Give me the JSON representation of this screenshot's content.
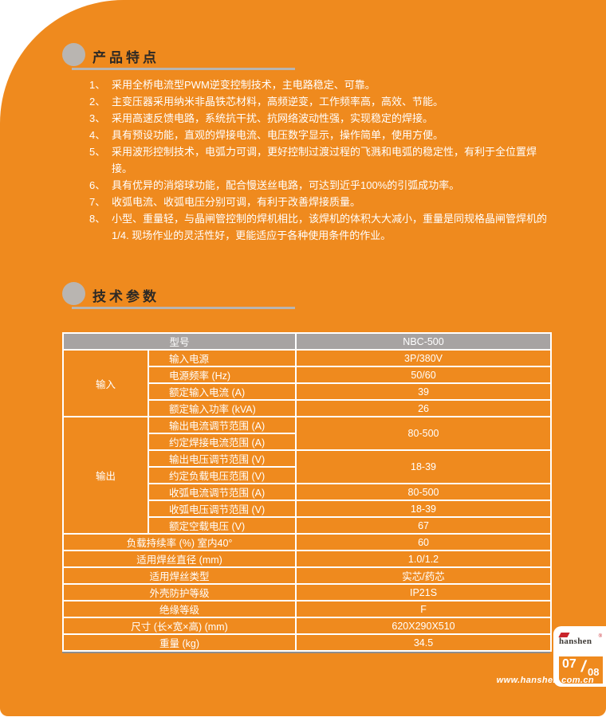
{
  "page": {
    "brand": "hanshen",
    "website": "www.hanshen.com.cn",
    "page_current": "07",
    "page_slash": "/",
    "page_total": "08",
    "colors": {
      "orange": "#ef8a1e",
      "table_header_gray": "#a7a3a2",
      "heading_gray": "#b9b5b1",
      "brand_red": "#c8242b",
      "table_border": "#ffffff"
    }
  },
  "features": {
    "title": "产品特点",
    "items": [
      {
        "num": "1、",
        "text": "采用全桥电流型PWM逆变控制技术，主电路稳定、可靠。"
      },
      {
        "num": "2、",
        "text": "主变压器采用纳米非晶铁芯材料，高频逆变，工作频率高，高效、节能。"
      },
      {
        "num": "3、",
        "text": "采用高速反馈电路，系统抗干扰、抗网络波动性强，实现稳定的焊接。"
      },
      {
        "num": "4、",
        "text": "具有预设功能，直观的焊接电流、电压数字显示，操作简单，使用方便。"
      },
      {
        "num": "5、",
        "text": "采用波形控制技术，电弧力可调，更好控制过渡过程的飞溅和电弧的稳定性，有利于全位置焊接。"
      },
      {
        "num": "6、",
        "text": "具有优异的消熔球功能，配合慢送丝电路，可达到近乎100%的引弧成功率。"
      },
      {
        "num": "7、",
        "text": "收弧电流、收弧电压分别可调，有利于改善焊接质量。"
      },
      {
        "num": "8、",
        "text": "小型、重量轻，与晶闸管控制的焊机相比，该焊机的体积大大减小，重量是同规格晶闸管焊机的1/4. 现场作业的灵活性好，更能适应于各种使用条件的作业。"
      }
    ]
  },
  "specs": {
    "title": "技术参数",
    "model_label": "型号",
    "model_value": "NBC-500",
    "rows": [
      {
        "group": "输入",
        "group_span": 4,
        "label": "输入电源",
        "value": "3P/380V"
      },
      {
        "label": "电源频率 (Hz)",
        "value": "50/60"
      },
      {
        "label": "额定输入电流 (A)",
        "value": "39"
      },
      {
        "label": "额定输入功率 (kVA)",
        "value": "26"
      },
      {
        "group": "输出",
        "group_span": 7,
        "label": "输出电流调节范围 (A)",
        "value": "80-500",
        "value_span": 2
      },
      {
        "label": "约定焊接电流范围 (A)"
      },
      {
        "label": "输出电压调节范围 (V)",
        "value": "18-39",
        "value_span": 2
      },
      {
        "label": "约定负载电压范围 (V)"
      },
      {
        "label": "收弧电流调节范围 (A)",
        "value": "80-500"
      },
      {
        "label": "收弧电压调节范围 (V)",
        "value": "18-39"
      },
      {
        "label": "额定空载电压 (V)",
        "value": "67"
      },
      {
        "label": "负载持续率 (%) 室内40°",
        "value": "60",
        "wide": true
      },
      {
        "label": "适用焊丝直径 (mm)",
        "value": "1.0/1.2",
        "wide": true
      },
      {
        "label": "适用焊丝类型",
        "value": "实芯/药芯",
        "wide": true
      },
      {
        "label": "外壳防护等级",
        "value": "IP21S",
        "wide": true
      },
      {
        "label": "绝缘等级",
        "value": "F",
        "wide": true
      },
      {
        "label": "尺寸 (长×宽×高) (mm)",
        "value": "620X290X510",
        "wide": true
      },
      {
        "label": "重量 (kg)",
        "value": "34.5",
        "wide": true
      }
    ]
  }
}
